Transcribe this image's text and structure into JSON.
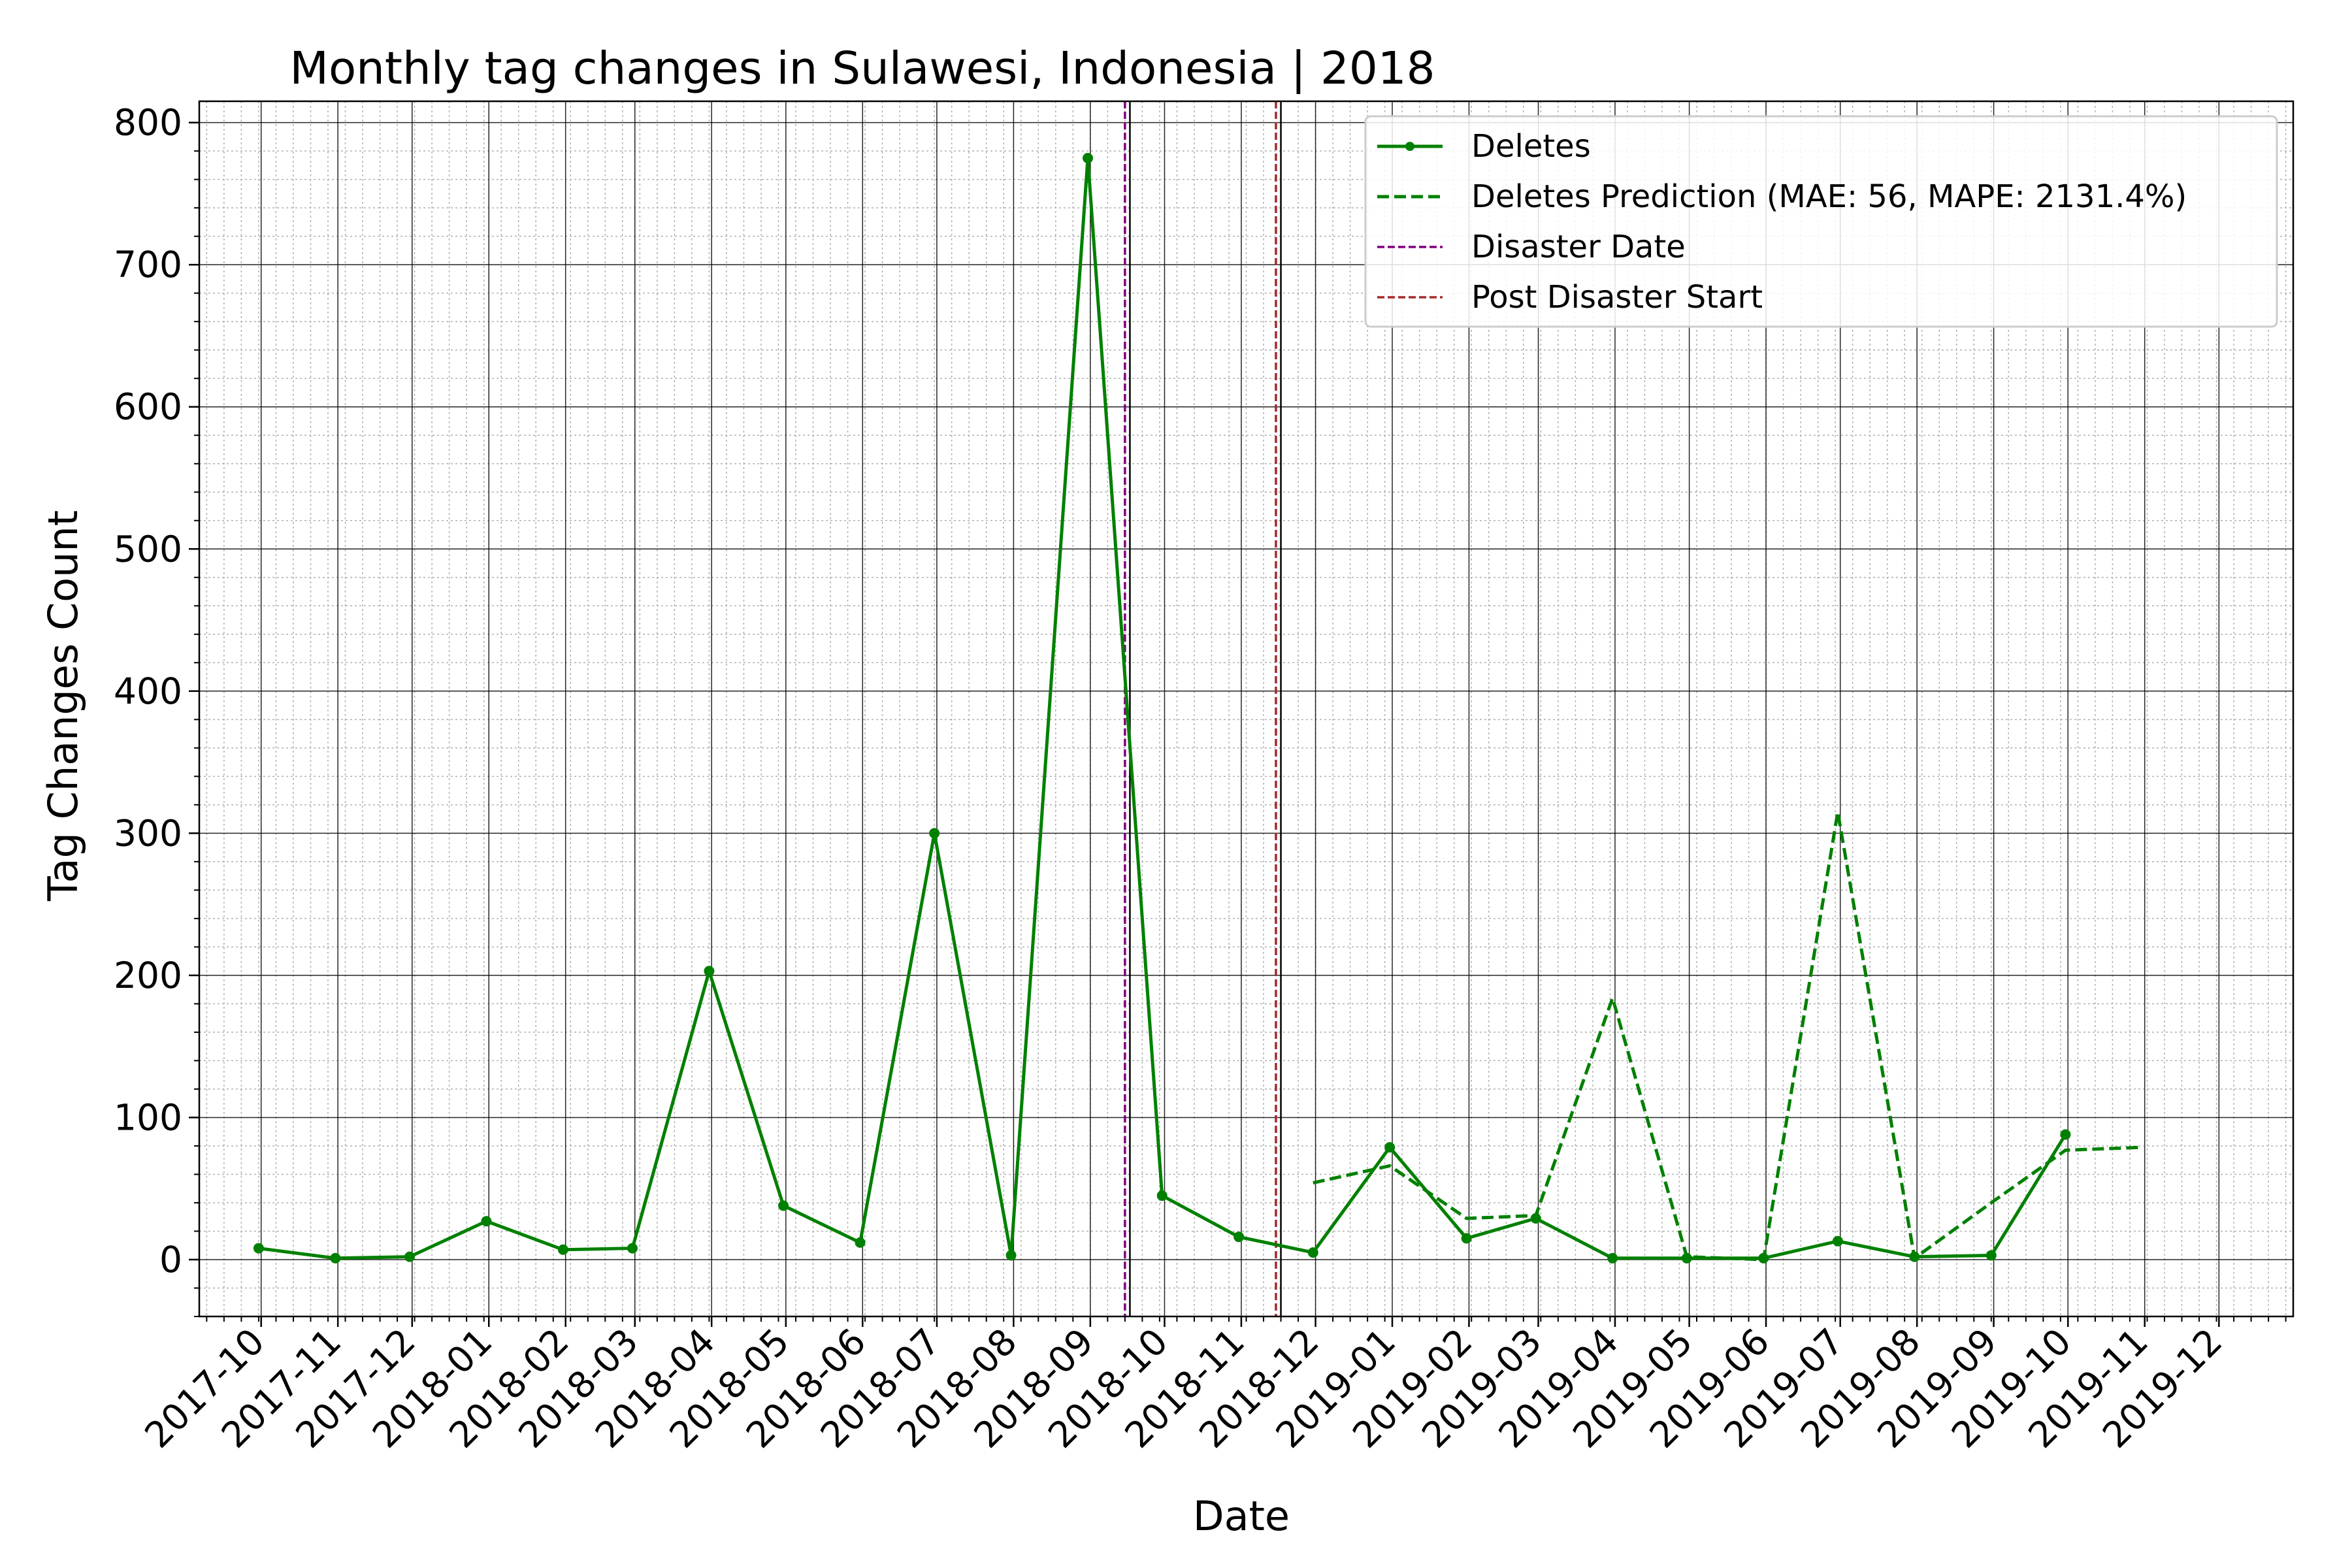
{
  "chart_data": {
    "type": "line",
    "title": "Monthly tag changes in Sulawesi, Indonesia | 2018",
    "xlabel": "Date",
    "ylabel": "Tag Changes Count",
    "ylim": [
      -40,
      815
    ],
    "y_ticks": [
      0,
      100,
      200,
      300,
      400,
      500,
      600,
      700,
      800
    ],
    "xlim": [
      "2017-09-06",
      "2019-12-31"
    ],
    "x_tick_labels": [
      "2017-10",
      "2017-11",
      "2017-12",
      "2018-01",
      "2018-02",
      "2018-03",
      "2018-04",
      "2018-05",
      "2018-06",
      "2018-07",
      "2018-08",
      "2018-09",
      "2018-10",
      "2018-11",
      "2018-12",
      "2019-01",
      "2019-02",
      "2019-03",
      "2019-04",
      "2019-05",
      "2019-06",
      "2019-07",
      "2019-08",
      "2019-09",
      "2019-10",
      "2019-11",
      "2019-12"
    ],
    "grid": true,
    "legend_position": "top-right",
    "series": [
      {
        "name": "Deletes",
        "color": "#008000",
        "style": "solid-with-markers",
        "x": [
          "2017-09-30",
          "2017-10-31",
          "2017-11-30",
          "2017-12-31",
          "2018-01-31",
          "2018-02-28",
          "2018-03-31",
          "2018-04-30",
          "2018-05-31",
          "2018-06-30",
          "2018-07-31",
          "2018-08-31",
          "2018-09-30",
          "2018-10-31",
          "2018-11-30",
          "2018-12-31",
          "2019-01-31",
          "2019-02-28",
          "2019-03-31",
          "2019-04-30",
          "2019-05-31",
          "2019-06-30",
          "2019-07-31",
          "2019-08-31",
          "2019-09-30"
        ],
        "values": [
          8,
          1,
          2,
          27,
          7,
          8,
          203,
          38,
          12,
          300,
          3,
          775,
          45,
          16,
          5,
          79,
          15,
          29,
          1,
          1,
          1,
          13,
          2,
          3,
          88
        ]
      },
      {
        "name": "Deletes Prediction (MAE: 56, MAPE: 2131.4%)",
        "color": "#008000",
        "style": "dashed",
        "x": [
          "2018-11-30",
          "2018-12-31",
          "2019-01-31",
          "2019-02-28",
          "2019-03-31",
          "2019-04-30",
          "2019-05-31",
          "2019-06-30",
          "2019-07-31",
          "2019-08-31",
          "2019-09-30",
          "2019-10-31"
        ],
        "values": [
          54,
          66,
          29,
          31,
          184,
          2,
          0,
          315,
          1,
          40,
          77,
          79
        ]
      }
    ],
    "vlines": [
      {
        "name": "Disaster Date",
        "color": "#800080",
        "x": "2018-09-15",
        "style": "dashed"
      },
      {
        "name": "Post Disaster Start",
        "color": "#a52a2a",
        "x": "2018-11-15",
        "style": "dashed"
      }
    ],
    "extra_vlines_solid": [
      {
        "x": "2018-09-17",
        "color": "#000000"
      },
      {
        "x": "2018-11-17",
        "color": "#000000"
      }
    ]
  }
}
